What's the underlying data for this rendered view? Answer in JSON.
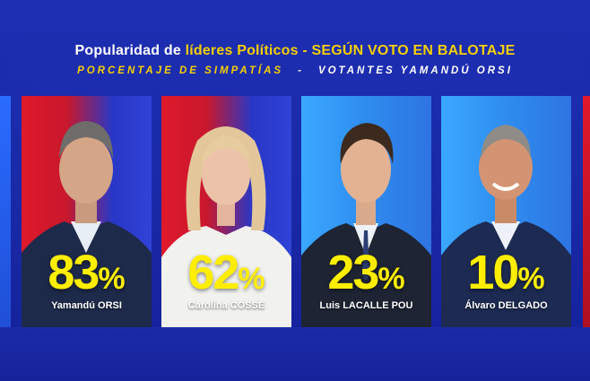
{
  "header": {
    "title_part1": "Popularidad de ",
    "title_part2": "líderes Políticos",
    "title_part3": " - SEGÚN VOTO EN BALOTAJE",
    "subtitle_left": "PORCENTAJE DE SIMPATÍAS",
    "subtitle_sep": "-",
    "subtitle_right": "VOTANTES YAMANDÚ ORSI"
  },
  "cards": [
    {
      "name": "Yamandú ORSI",
      "percent": "83",
      "symbol": "%",
      "value": 83,
      "background": "red-blue"
    },
    {
      "name": "Carolina COSSE",
      "percent": "62",
      "symbol": "%",
      "value": 62,
      "background": "red-blue"
    },
    {
      "name": "Luis LACALLE POU",
      "percent": "23",
      "symbol": "%",
      "value": 23,
      "background": "light-blue"
    },
    {
      "name": "Álvaro DELGADO",
      "percent": "10",
      "symbol": "%",
      "value": 10,
      "background": "light-blue"
    }
  ],
  "colors": {
    "accent_yellow": "#f5d000",
    "percent_yellow": "#ffee00",
    "background_blue": "#1c2fb3",
    "red": "#e0192b",
    "light_blue": "#3ba8ff"
  }
}
